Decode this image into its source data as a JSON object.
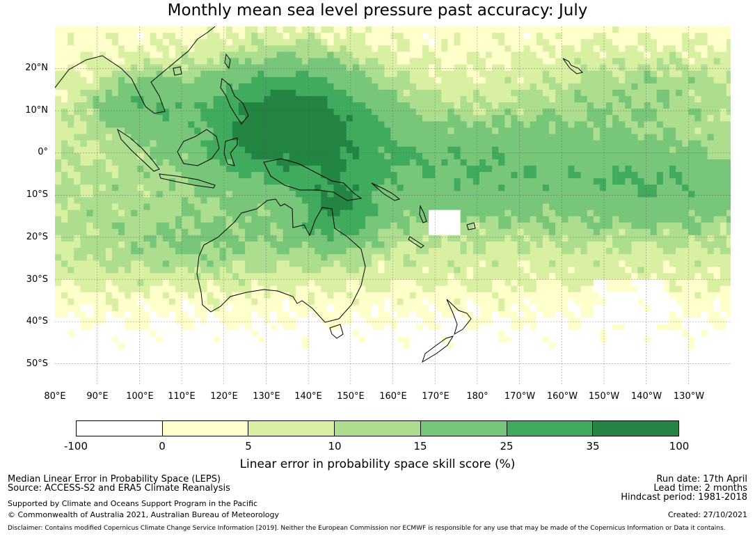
{
  "title": "Monthly mean sea level pressure past accuracy: July",
  "map": {
    "lat_labels": [
      "20°N",
      "10°N",
      "0°",
      "10°S",
      "20°S",
      "30°S",
      "40°S",
      "50°S"
    ],
    "lon_labels": [
      "80°E",
      "90°E",
      "100°E",
      "110°E",
      "120°E",
      "130°E",
      "140°E",
      "150°E",
      "160°E",
      "170°E",
      "180°",
      "170°W",
      "160°W",
      "150°W",
      "140°W",
      "130°W"
    ],
    "extent": {
      "lon_min": 80,
      "lon_max": 240,
      "lat_max": 30,
      "lat_min": -55
    },
    "grid": "dashed",
    "field": "LEPS skill score, gridded"
  },
  "colorbar": {
    "ticks": [
      "-100",
      "0",
      "5",
      "10",
      "15",
      "25",
      "35",
      "100"
    ],
    "colors": [
      "#ffffff",
      "#ffffcc",
      "#d9f0a3",
      "#addd8e",
      "#78c679",
      "#41ab5d",
      "#238443"
    ],
    "label": "Linear error in probability space skill score (%)"
  },
  "footer": {
    "method": "Median Linear Error in Probability Space (LEPS)",
    "source": "Source: ACCESS-S2 and ERA5 Climate Reanalysis",
    "support": "Supported by Climate and Oceans Support Program in the Pacific",
    "copyright": "© Commonwealth of Australia 2021, Australian Bureau of Meteorology",
    "run_date": "Run date: 17th April",
    "lead_time": "Lead time: 2 months",
    "hindcast": "Hindcast period: 1981-2018",
    "created": "Created: 27/10/2021",
    "disclaimer": "Disclaimer: Contains modified Copernicus Climate Change Service Information [2019]. Neither the European Commission nor ECMWF is responsible for any use that may be made of the Copernicus Information or Data it contains."
  }
}
